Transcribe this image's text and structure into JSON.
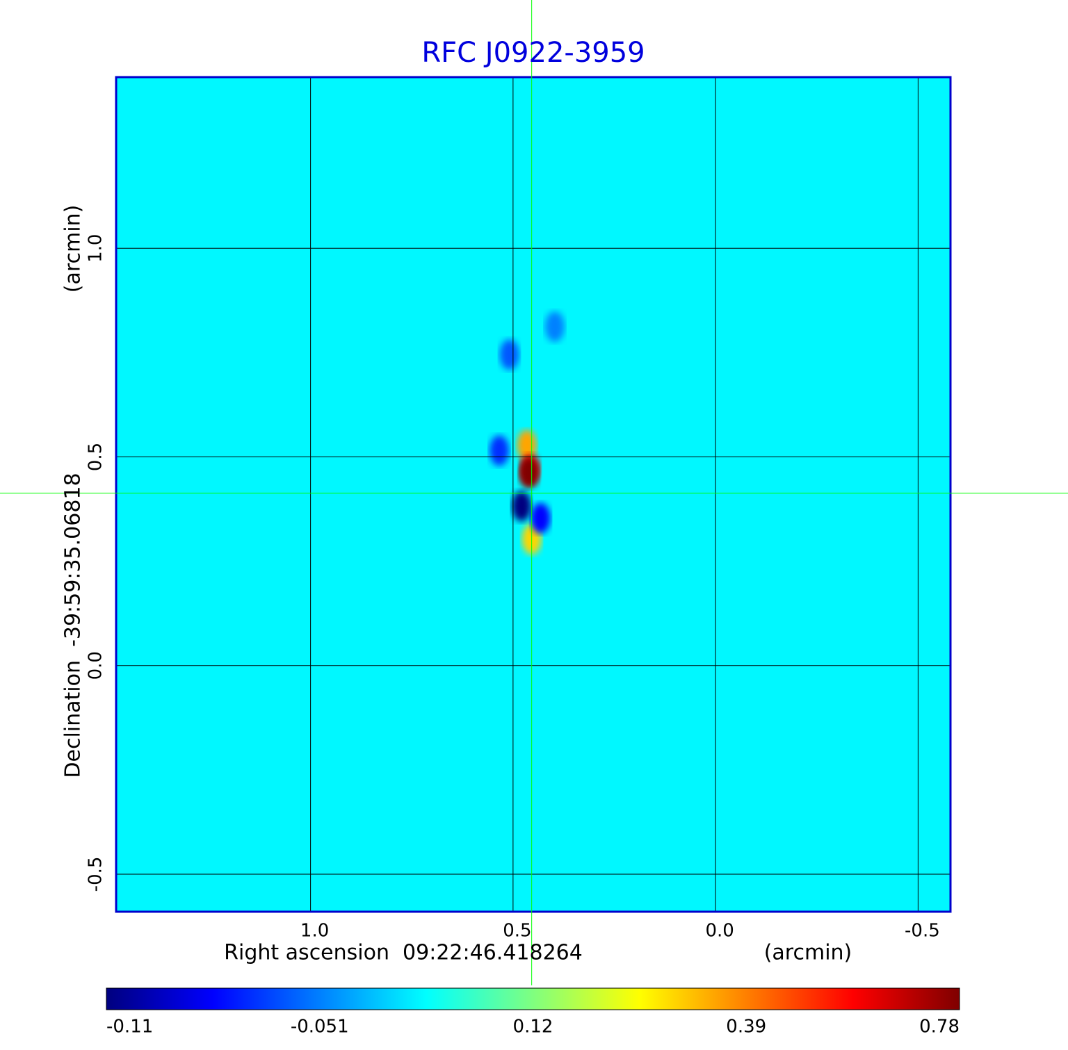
{
  "chart_data": {
    "type": "heatmap",
    "title": "RFC J0922-3959",
    "xlabel": "Right ascension  09:22:46.418264",
    "xunit": "(arcmin)",
    "ylabel": "Declination  -39:59:35.06818",
    "yunit": "(arcmin)",
    "xlim": [
      1.48,
      -0.58
    ],
    "ylim": [
      -0.59,
      1.41
    ],
    "xticks": [
      {
        "value": 1,
        "label": "1.0"
      },
      0.5,
      {
        "value": 0,
        "label": "0.0"
      },
      -0.5
    ],
    "yticks": [
      {
        "value": 1,
        "label": "1.0"
      },
      0.5,
      {
        "value": 0,
        "label": "0.0"
      },
      -0.5
    ],
    "grid": true,
    "title_color": "#0000dd",
    "frame_color": "#0000cc",
    "crosshair_color": "#00ff00",
    "background_value": 0.03,
    "sources": [
      {
        "x": 0.397,
        "y": 0.812,
        "value": -0.05
      },
      {
        "x": 0.509,
        "y": 0.745,
        "value": -0.06
      },
      {
        "x": 0.534,
        "y": 0.515,
        "value": -0.07
      },
      {
        "x": 0.466,
        "y": 0.528,
        "value": 0.35
      },
      {
        "x": 0.454,
        "y": 0.303,
        "value": 0.3
      },
      {
        "x": 0.432,
        "y": 0.353,
        "value": -0.08
      },
      {
        "x": 0.479,
        "y": 0.382,
        "value": -0.11
      },
      {
        "x": 0.458,
        "y": 0.47,
        "value": 0.6
      },
      {
        "x": 0.461,
        "y": 0.462,
        "value": 0.78
      }
    ],
    "crosshair": {
      "x": 0.454,
      "y": 0.413
    },
    "colorbar": {
      "ticks": [
        -0.11,
        -0.051,
        0.12,
        0.39,
        0.78
      ]
    }
  }
}
